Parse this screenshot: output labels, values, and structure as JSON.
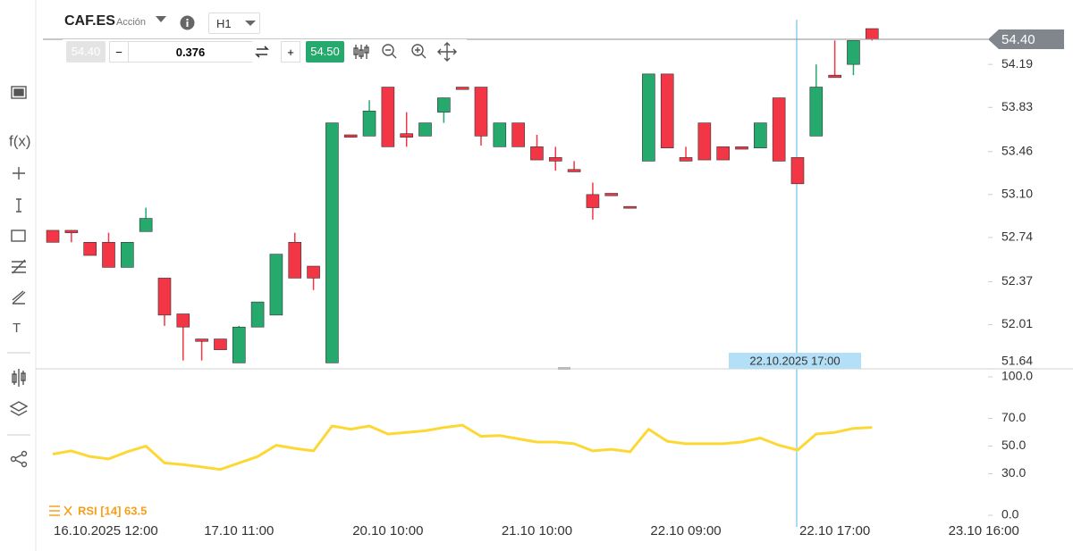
{
  "header": {
    "symbol": "CAF.ES",
    "type_label": "Acción",
    "interval": "H1"
  },
  "order_bar": {
    "bid": "54.40",
    "minus": "−",
    "quantity": "0.376",
    "plus": "+",
    "ask": "54.50"
  },
  "left_toolbar": {
    "fx": "f(x)",
    "text_tool": "T"
  },
  "chart_data": [
    {
      "type": "candlestick",
      "up_color": "#26a96c",
      "down_color": "#f23645",
      "open": [
        52.8,
        52.8,
        52.7,
        52.7,
        52.49,
        52.79,
        52.4,
        52.1,
        51.89,
        51.89,
        51.69,
        51.99,
        52.09,
        52.7,
        52.5,
        51.69,
        53.6,
        53.59,
        54.0,
        53.61,
        53.59,
        53.79,
        54.0,
        54.0,
        53.5,
        53.7,
        53.5,
        53.41,
        53.31,
        53.1,
        53.11,
        53.0,
        53.38,
        54.11,
        53.41,
        53.7,
        53.5,
        53.5,
        53.49,
        53.91,
        53.41,
        53.59,
        54.1,
        54.19,
        54.49
      ],
      "high": [
        52.8,
        52.8,
        52.7,
        52.78,
        52.7,
        52.99,
        52.4,
        52.1,
        51.89,
        51.89,
        52.0,
        52.2,
        52.6,
        52.78,
        52.5,
        53.7,
        53.6,
        53.89,
        54.0,
        53.79,
        53.7,
        53.91,
        54.0,
        54.0,
        53.7,
        53.7,
        53.6,
        53.5,
        53.38,
        53.2,
        53.11,
        53.0,
        54.11,
        54.11,
        53.5,
        53.7,
        53.5,
        53.5,
        53.7,
        53.91,
        53.41,
        54.19,
        54.39,
        54.39,
        54.49
      ],
      "low": [
        52.7,
        52.7,
        52.59,
        52.49,
        52.49,
        52.79,
        52.0,
        51.71,
        51.71,
        51.8,
        51.69,
        51.99,
        52.09,
        52.4,
        52.3,
        51.69,
        53.58,
        53.59,
        53.5,
        53.5,
        53.59,
        53.7,
        53.98,
        53.51,
        53.5,
        53.5,
        53.39,
        53.3,
        53.29,
        52.89,
        53.09,
        52.99,
        53.38,
        53.49,
        53.38,
        53.39,
        53.39,
        53.48,
        53.49,
        53.38,
        53.19,
        53.59,
        54.08,
        54.1,
        54.39
      ],
      "close": [
        52.7,
        52.78,
        52.59,
        52.49,
        52.7,
        52.9,
        52.09,
        51.99,
        51.87,
        51.8,
        51.99,
        52.2,
        52.6,
        52.4,
        52.4,
        53.7,
        53.58,
        53.8,
        53.5,
        53.58,
        53.7,
        53.91,
        53.98,
        53.59,
        53.7,
        53.5,
        53.39,
        53.38,
        53.29,
        52.99,
        53.09,
        52.99,
        54.11,
        53.49,
        53.38,
        53.39,
        53.39,
        53.48,
        53.7,
        53.38,
        53.19,
        54.0,
        54.08,
        54.39,
        54.4
      ],
      "ylim": [
        51.64,
        54.58
      ],
      "yticks": [
        51.64,
        52.01,
        52.37,
        52.74,
        {
          "value": 53.1,
          "label": "53.10"
        },
        53.46,
        53.83,
        54.19
      ],
      "xlim": [
        -0.53,
        50.23
      ],
      "xticks": [
        {
          "value": 2,
          "label": "16.10.2025 12:00"
        },
        {
          "value": 10,
          "label": "17.10 11:00"
        },
        {
          "value": 18,
          "label": "20.10 10:00"
        },
        {
          "value": 26,
          "label": "21.10 10:00"
        },
        {
          "value": 34,
          "label": "22.10 09:00"
        },
        {
          "value": 42,
          "label": "22.10 17:00"
        },
        {
          "value": 50,
          "label": "23.10 16:00"
        }
      ],
      "last_price": {
        "value": 54.4,
        "label": "54.40"
      },
      "crosshair_label": "22.10.2025 17:00"
    },
    {
      "type": "line",
      "name": "RSI [14] 63.5",
      "color": "#fdd835",
      "label_color": "#f5a01a",
      "values": [
        44.2,
        46.5,
        42.4,
        40.7,
        45.9,
        50.0,
        37.8,
        36.6,
        34.9,
        33.1,
        37.8,
        42.4,
        50.6,
        48.3,
        46.5,
        64.5,
        62.2,
        64.5,
        58.7,
        59.9,
        61.0,
        63.4,
        65.1,
        57.0,
        57.6,
        55.2,
        52.9,
        52.9,
        51.7,
        46.5,
        47.7,
        45.9,
        62.2,
        53.5,
        51.7,
        51.7,
        51.7,
        52.9,
        55.8,
        50.6,
        47.1,
        58.7,
        59.9,
        62.8,
        63.5
      ],
      "ylim": [
        0,
        100
      ],
      "yticks": [
        {
          "value": 0,
          "label": "0.0"
        },
        {
          "value": 30,
          "label": "30.0"
        },
        {
          "value": 50,
          "label": "50.0"
        },
        {
          "value": 70,
          "label": "70.0"
        },
        {
          "value": 100,
          "label": "100.0"
        }
      ]
    }
  ]
}
